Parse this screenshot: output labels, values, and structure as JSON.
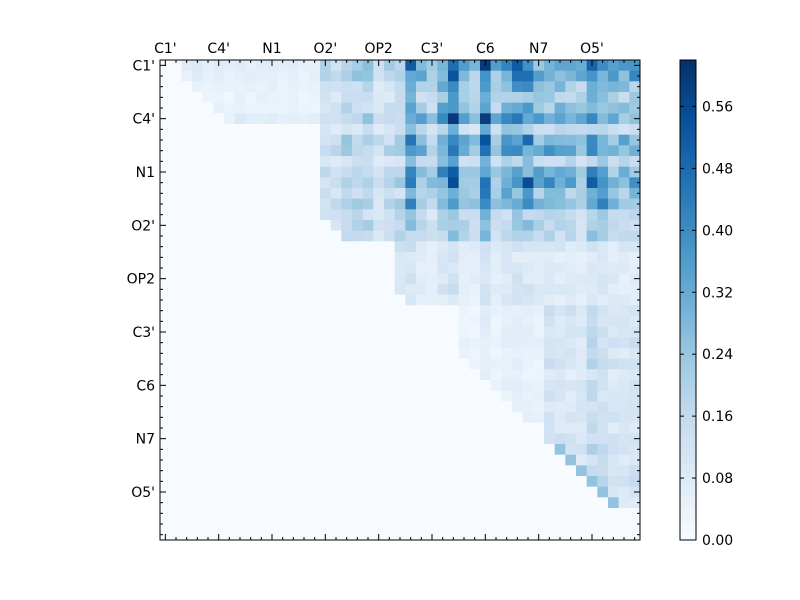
{
  "chart_data": {
    "type": "heatmap",
    "title": "",
    "xlabel": "",
    "ylabel": "",
    "x_tick_labels": [
      "C1'",
      "C4'",
      "N1",
      "O2'",
      "OP2",
      "C3'",
      "C6",
      "N7",
      "O5'"
    ],
    "y_tick_labels": [
      "C1'",
      "C4'",
      "N1",
      "O2'",
      "OP2",
      "C3'",
      "C6",
      "N7",
      "O5'"
    ],
    "x_axis_position": "top",
    "matrix_size": 45,
    "matrix_shape": "upper-triangular",
    "values_shown_by_fill": true,
    "colormap": "Blues",
    "colormap_stops": [
      "#f7fbff",
      "#deebf7",
      "#c6dbef",
      "#9ecae1",
      "#6baed6",
      "#4292c6",
      "#2171b5",
      "#08519c",
      "#08306b"
    ],
    "colorbar": {
      "range": [
        0.0,
        0.62
      ],
      "tick_labels": [
        "0.00",
        "0.08",
        "0.16",
        "0.24",
        "0.32",
        "0.40",
        "0.48",
        "0.56"
      ],
      "position": "right"
    },
    "grid": false,
    "block_structure_estimate": [
      {
        "rows": "0-5",
        "cols": "2-14",
        "value_range": [
          0.0,
          0.18
        ]
      },
      {
        "rows": "0-14",
        "cols": "15-23",
        "value_range": [
          0.1,
          0.28
        ]
      },
      {
        "rows": "0-16",
        "cols": "23-45",
        "value_range": [
          0.15,
          0.6
        ]
      },
      {
        "rows": "15-22",
        "cols": "22-45",
        "value_range": [
          0.02,
          0.3
        ]
      },
      {
        "rows": "22-41",
        "cols": "36-45",
        "value_range": [
          0.02,
          0.28
        ]
      }
    ]
  }
}
